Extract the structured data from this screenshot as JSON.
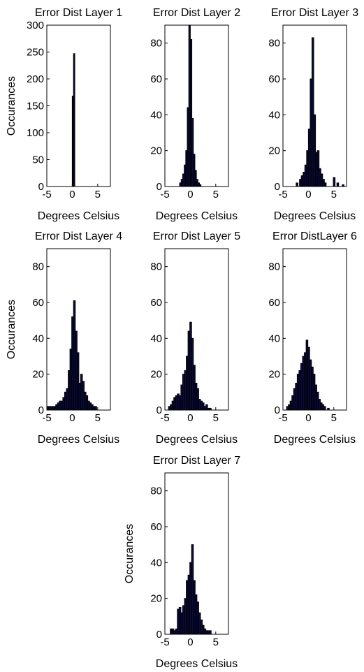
{
  "chart_data": [
    {
      "type": "bar",
      "title": "Error Dist Layer 1",
      "xlabel": "Degrees Celsius",
      "ylabel": "Occurances",
      "xlim": [
        -5,
        7.5
      ],
      "ylim": [
        0,
        300
      ],
      "xticks": [
        -5,
        0,
        5
      ],
      "yticks": [
        0,
        50,
        100,
        150,
        200,
        250,
        300
      ],
      "bin_width": 0.25,
      "bins": [
        {
          "x": 0.0,
          "y": 168
        },
        {
          "x": 0.25,
          "y": 247
        }
      ]
    },
    {
      "type": "bar",
      "title": "Error Dist Layer 2",
      "xlabel": "Degrees Celsius",
      "ylabel": "",
      "xlim": [
        -5,
        7.5
      ],
      "ylim": [
        0,
        90
      ],
      "xticks": [
        -5,
        0,
        5
      ],
      "yticks": [
        0,
        20,
        40,
        60,
        80
      ],
      "bin_width": 0.3,
      "bins": [
        {
          "x": -2.1,
          "y": 2
        },
        {
          "x": -1.8,
          "y": 4
        },
        {
          "x": -1.5,
          "y": 7
        },
        {
          "x": -1.2,
          "y": 12
        },
        {
          "x": -0.9,
          "y": 20
        },
        {
          "x": -0.6,
          "y": 44
        },
        {
          "x": -0.3,
          "y": 90
        },
        {
          "x": 0.0,
          "y": 82
        },
        {
          "x": 0.3,
          "y": 38
        },
        {
          "x": 0.6,
          "y": 18
        },
        {
          "x": 0.9,
          "y": 9
        },
        {
          "x": 1.2,
          "y": 4
        },
        {
          "x": 1.5,
          "y": 2
        },
        {
          "x": 1.8,
          "y": 1
        }
      ]
    },
    {
      "type": "bar",
      "title": "Error Dist Layer 3",
      "xlabel": "Degrees Celsius",
      "ylabel": "",
      "xlim": [
        -5,
        7.5
      ],
      "ylim": [
        0,
        90
      ],
      "xticks": [
        -5,
        0,
        5
      ],
      "yticks": [
        0,
        20,
        40,
        60,
        80
      ],
      "bin_width": 0.35,
      "bins": [
        {
          "x": -2.4,
          "y": 2
        },
        {
          "x": -1.75,
          "y": 4
        },
        {
          "x": -1.4,
          "y": 6
        },
        {
          "x": -1.05,
          "y": 8
        },
        {
          "x": -0.7,
          "y": 12
        },
        {
          "x": -0.35,
          "y": 20
        },
        {
          "x": 0.0,
          "y": 32
        },
        {
          "x": 0.35,
          "y": 60
        },
        {
          "x": 0.7,
          "y": 83
        },
        {
          "x": 1.05,
          "y": 40
        },
        {
          "x": 1.4,
          "y": 19
        },
        {
          "x": 1.75,
          "y": 20
        },
        {
          "x": 2.1,
          "y": 10
        },
        {
          "x": 2.45,
          "y": 7
        },
        {
          "x": 2.8,
          "y": 4
        },
        {
          "x": 3.15,
          "y": 2
        },
        {
          "x": 4.9,
          "y": 5
        },
        {
          "x": 5.6,
          "y": 2
        },
        {
          "x": 6.65,
          "y": 1
        }
      ]
    },
    {
      "type": "bar",
      "title": "Error Dist Layer 4",
      "xlabel": "Degrees Celsius",
      "ylabel": "Occurances",
      "xlim": [
        -5,
        7.5
      ],
      "ylim": [
        0,
        90
      ],
      "xticks": [
        -5,
        0,
        5
      ],
      "yticks": [
        0,
        20,
        40,
        60,
        80
      ],
      "bin_width": 0.35,
      "bins": [
        {
          "x": -5.0,
          "y": 2
        },
        {
          "x": -4.65,
          "y": 2
        },
        {
          "x": -4.3,
          "y": 2
        },
        {
          "x": -3.95,
          "y": 2
        },
        {
          "x": -3.6,
          "y": 2
        },
        {
          "x": -3.25,
          "y": 3
        },
        {
          "x": -2.9,
          "y": 4
        },
        {
          "x": -2.55,
          "y": 5
        },
        {
          "x": -2.2,
          "y": 5
        },
        {
          "x": -1.85,
          "y": 7
        },
        {
          "x": -1.5,
          "y": 10
        },
        {
          "x": -1.15,
          "y": 12
        },
        {
          "x": -0.8,
          "y": 22
        },
        {
          "x": -0.45,
          "y": 34
        },
        {
          "x": -0.1,
          "y": 52
        },
        {
          "x": 0.25,
          "y": 61
        },
        {
          "x": 0.6,
          "y": 44
        },
        {
          "x": 0.95,
          "y": 32
        },
        {
          "x": 1.3,
          "y": 15
        },
        {
          "x": 1.65,
          "y": 20
        },
        {
          "x": 2.0,
          "y": 16
        },
        {
          "x": 2.35,
          "y": 10
        },
        {
          "x": 2.7,
          "y": 8
        },
        {
          "x": 3.05,
          "y": 5
        },
        {
          "x": 3.4,
          "y": 4
        },
        {
          "x": 3.75,
          "y": 3
        },
        {
          "x": 4.1,
          "y": 2
        },
        {
          "x": 4.45,
          "y": 2
        }
      ]
    },
    {
      "type": "bar",
      "title": "Error Dist Layer 5",
      "xlabel": "Degrees Celsius",
      "ylabel": "",
      "xlim": [
        -5,
        7.5
      ],
      "ylim": [
        0,
        90
      ],
      "xticks": [
        -5,
        0,
        5
      ],
      "yticks": [
        0,
        20,
        40,
        60,
        80
      ],
      "bin_width": 0.35,
      "bins": [
        {
          "x": -4.3,
          "y": 2
        },
        {
          "x": -3.95,
          "y": 3
        },
        {
          "x": -3.6,
          "y": 5
        },
        {
          "x": -3.25,
          "y": 7
        },
        {
          "x": -2.9,
          "y": 8
        },
        {
          "x": -2.55,
          "y": 9
        },
        {
          "x": -2.2,
          "y": 8
        },
        {
          "x": -1.85,
          "y": 14
        },
        {
          "x": -1.5,
          "y": 20
        },
        {
          "x": -1.15,
          "y": 22
        },
        {
          "x": -0.8,
          "y": 30
        },
        {
          "x": -0.45,
          "y": 44
        },
        {
          "x": -0.1,
          "y": 49
        },
        {
          "x": 0.25,
          "y": 40
        },
        {
          "x": 0.6,
          "y": 25
        },
        {
          "x": 0.95,
          "y": 15
        },
        {
          "x": 1.3,
          "y": 12
        },
        {
          "x": 1.65,
          "y": 6
        },
        {
          "x": 2.0,
          "y": 5
        },
        {
          "x": 2.35,
          "y": 4
        },
        {
          "x": 2.7,
          "y": 2
        },
        {
          "x": 3.05,
          "y": 3
        },
        {
          "x": 3.4,
          "y": 1
        },
        {
          "x": 3.75,
          "y": 1
        }
      ]
    },
    {
      "type": "bar",
      "title": "Error DistLayer 6",
      "xlabel": "Degrees Celsius",
      "ylabel": "",
      "xlim": [
        -5,
        7.5
      ],
      "ylim": [
        0,
        90
      ],
      "xticks": [
        -5,
        0,
        5
      ],
      "yticks": [
        0,
        20,
        40,
        60,
        80
      ],
      "bin_width": 0.35,
      "bins": [
        {
          "x": -4.3,
          "y": 2
        },
        {
          "x": -3.95,
          "y": 3
        },
        {
          "x": -3.6,
          "y": 5
        },
        {
          "x": -3.25,
          "y": 8
        },
        {
          "x": -2.9,
          "y": 12
        },
        {
          "x": -2.55,
          "y": 15
        },
        {
          "x": -2.2,
          "y": 20
        },
        {
          "x": -1.85,
          "y": 22
        },
        {
          "x": -1.5,
          "y": 26
        },
        {
          "x": -1.15,
          "y": 30
        },
        {
          "x": -0.8,
          "y": 32
        },
        {
          "x": -0.45,
          "y": 39
        },
        {
          "x": -0.1,
          "y": 35
        },
        {
          "x": 0.25,
          "y": 28
        },
        {
          "x": 0.6,
          "y": 24
        },
        {
          "x": 0.95,
          "y": 20
        },
        {
          "x": 1.3,
          "y": 14
        },
        {
          "x": 1.65,
          "y": 10
        },
        {
          "x": 2.0,
          "y": 6
        },
        {
          "x": 2.35,
          "y": 4
        },
        {
          "x": 2.7,
          "y": 3
        },
        {
          "x": 3.05,
          "y": 2
        },
        {
          "x": 3.75,
          "y": 1
        }
      ]
    },
    {
      "type": "bar",
      "title": "Error Dist Layer 7",
      "xlabel": "Degrees Celsius",
      "ylabel": "Occurances",
      "xlim": [
        -5,
        7.5
      ],
      "ylim": [
        0,
        90
      ],
      "xticks": [
        -5,
        0,
        5
      ],
      "yticks": [
        0,
        20,
        40,
        60,
        80
      ],
      "bin_width": 0.35,
      "bins": [
        {
          "x": -3.95,
          "y": 3
        },
        {
          "x": -3.6,
          "y": 3
        },
        {
          "x": -3.25,
          "y": 2
        },
        {
          "x": -2.9,
          "y": 3
        },
        {
          "x": -2.55,
          "y": 14
        },
        {
          "x": -2.2,
          "y": 15
        },
        {
          "x": -1.85,
          "y": 12
        },
        {
          "x": -1.5,
          "y": 16
        },
        {
          "x": -1.15,
          "y": 20
        },
        {
          "x": -0.8,
          "y": 30
        },
        {
          "x": -0.45,
          "y": 33
        },
        {
          "x": -0.1,
          "y": 40
        },
        {
          "x": 0.25,
          "y": 50
        },
        {
          "x": 0.6,
          "y": 30
        },
        {
          "x": 0.95,
          "y": 22
        },
        {
          "x": 1.3,
          "y": 18
        },
        {
          "x": 1.65,
          "y": 12
        },
        {
          "x": 2.0,
          "y": 8
        },
        {
          "x": 2.35,
          "y": 5
        },
        {
          "x": 2.7,
          "y": 3
        },
        {
          "x": 3.05,
          "y": 2
        },
        {
          "x": 3.4,
          "y": 2
        },
        {
          "x": 3.75,
          "y": 2
        }
      ]
    }
  ],
  "style": {
    "bar_fill": "#0a0a3c",
    "bar_edge": "#000000",
    "axis_color": "#000000",
    "background": "#ffffff"
  }
}
